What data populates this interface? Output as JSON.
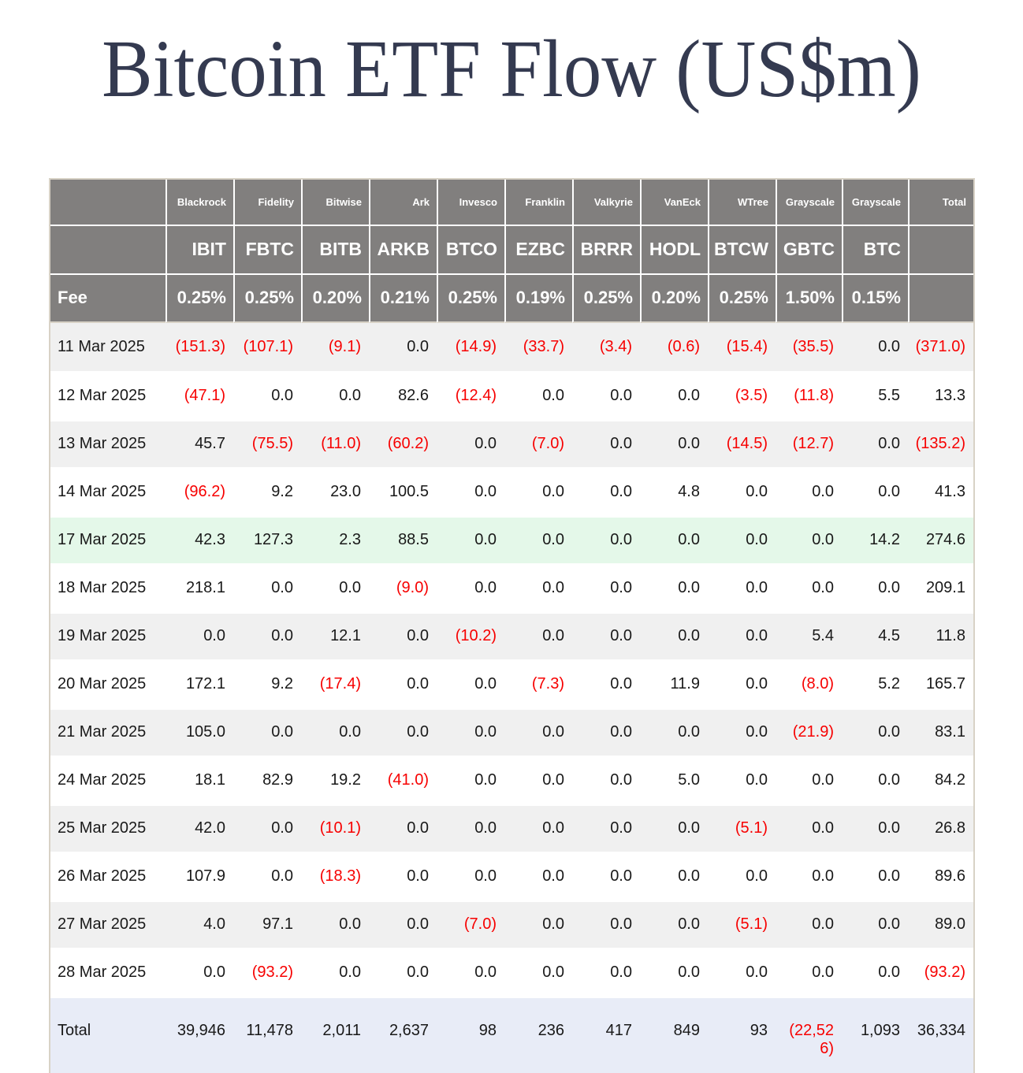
{
  "title": "Bitcoin ETF Flow (US$m)",
  "colors": {
    "title_navy": "#343A50",
    "header_gray": "#817F7E",
    "stripe_gray": "#F0F0F0",
    "highlight_green": "#E4F8E9",
    "total_blue": "#E8ECF7",
    "negative_red": "#F70000",
    "outer_border_beige": "#D8D2C6"
  },
  "table": {
    "issuers": [
      "Blackrock",
      "Fidelity",
      "Bitwise",
      "Ark",
      "Invesco",
      "Franklin",
      "Valkyrie",
      "VanEck",
      "WTree",
      "Grayscale",
      "Grayscale"
    ],
    "tickers": [
      "IBIT",
      "FBTC",
      "BITB",
      "ARKB",
      "BTCO",
      "EZBC",
      "BRRR",
      "HODL",
      "BTCW",
      "GBTC",
      "BTC"
    ],
    "total_header": "Total",
    "fee_label": "Fee",
    "fees": [
      "0.25%",
      "0.25%",
      "0.20%",
      "0.21%",
      "0.25%",
      "0.19%",
      "0.25%",
      "0.20%",
      "0.25%",
      "1.50%",
      "0.15%"
    ],
    "rows": [
      {
        "date": "11 Mar 2025",
        "values": [
          "(151.3)",
          "(107.1)",
          "(9.1)",
          "0.0",
          "(14.9)",
          "(33.7)",
          "(3.4)",
          "(0.6)",
          "(15.4)",
          "(35.5)",
          "0.0",
          "(371.0)"
        ]
      },
      {
        "date": "12 Mar 2025",
        "values": [
          "(47.1)",
          "0.0",
          "0.0",
          "82.6",
          "(12.4)",
          "0.0",
          "0.0",
          "0.0",
          "(3.5)",
          "(11.8)",
          "5.5",
          "13.3"
        ]
      },
      {
        "date": "13 Mar 2025",
        "values": [
          "45.7",
          "(75.5)",
          "(11.0)",
          "(60.2)",
          "0.0",
          "(7.0)",
          "0.0",
          "0.0",
          "(14.5)",
          "(12.7)",
          "0.0",
          "(135.2)"
        ]
      },
      {
        "date": "14 Mar 2025",
        "values": [
          "(96.2)",
          "9.2",
          "23.0",
          "100.5",
          "0.0",
          "0.0",
          "0.0",
          "4.8",
          "0.0",
          "0.0",
          "0.0",
          "41.3"
        ]
      },
      {
        "date": "17 Mar 2025",
        "values": [
          "42.3",
          "127.3",
          "2.3",
          "88.5",
          "0.0",
          "0.0",
          "0.0",
          "0.0",
          "0.0",
          "0.0",
          "14.2",
          "274.6"
        ],
        "highlight": true
      },
      {
        "date": "18 Mar 2025",
        "values": [
          "218.1",
          "0.0",
          "0.0",
          "(9.0)",
          "0.0",
          "0.0",
          "0.0",
          "0.0",
          "0.0",
          "0.0",
          "0.0",
          "209.1"
        ]
      },
      {
        "date": "19 Mar 2025",
        "values": [
          "0.0",
          "0.0",
          "12.1",
          "0.0",
          "(10.2)",
          "0.0",
          "0.0",
          "0.0",
          "0.0",
          "5.4",
          "4.5",
          "11.8"
        ]
      },
      {
        "date": "20 Mar 2025",
        "values": [
          "172.1",
          "9.2",
          "(17.4)",
          "0.0",
          "0.0",
          "(7.3)",
          "0.0",
          "11.9",
          "0.0",
          "(8.0)",
          "5.2",
          "165.7"
        ]
      },
      {
        "date": "21 Mar 2025",
        "values": [
          "105.0",
          "0.0",
          "0.0",
          "0.0",
          "0.0",
          "0.0",
          "0.0",
          "0.0",
          "0.0",
          "(21.9)",
          "0.0",
          "83.1"
        ]
      },
      {
        "date": "24 Mar 2025",
        "values": [
          "18.1",
          "82.9",
          "19.2",
          "(41.0)",
          "0.0",
          "0.0",
          "0.0",
          "5.0",
          "0.0",
          "0.0",
          "0.0",
          "84.2"
        ]
      },
      {
        "date": "25 Mar 2025",
        "values": [
          "42.0",
          "0.0",
          "(10.1)",
          "0.0",
          "0.0",
          "0.0",
          "0.0",
          "0.0",
          "(5.1)",
          "0.0",
          "0.0",
          "26.8"
        ]
      },
      {
        "date": "26 Mar 2025",
        "values": [
          "107.9",
          "0.0",
          "(18.3)",
          "0.0",
          "0.0",
          "0.0",
          "0.0",
          "0.0",
          "0.0",
          "0.0",
          "0.0",
          "89.6"
        ]
      },
      {
        "date": "27 Mar 2025",
        "values": [
          "4.0",
          "97.1",
          "0.0",
          "0.0",
          "(7.0)",
          "0.0",
          "0.0",
          "0.0",
          "(5.1)",
          "0.0",
          "0.0",
          "89.0"
        ]
      },
      {
        "date": "28 Mar 2025",
        "values": [
          "0.0",
          "(93.2)",
          "0.0",
          "0.0",
          "0.0",
          "0.0",
          "0.0",
          "0.0",
          "0.0",
          "0.0",
          "0.0",
          "(93.2)"
        ]
      }
    ],
    "total_row": {
      "label": "Total",
      "values": [
        "39,946",
        "11,478",
        "2,011",
        "2,637",
        "98",
        "236",
        "417",
        "849",
        "93",
        "(22,526)",
        "1,093",
        "36,334"
      ]
    }
  }
}
